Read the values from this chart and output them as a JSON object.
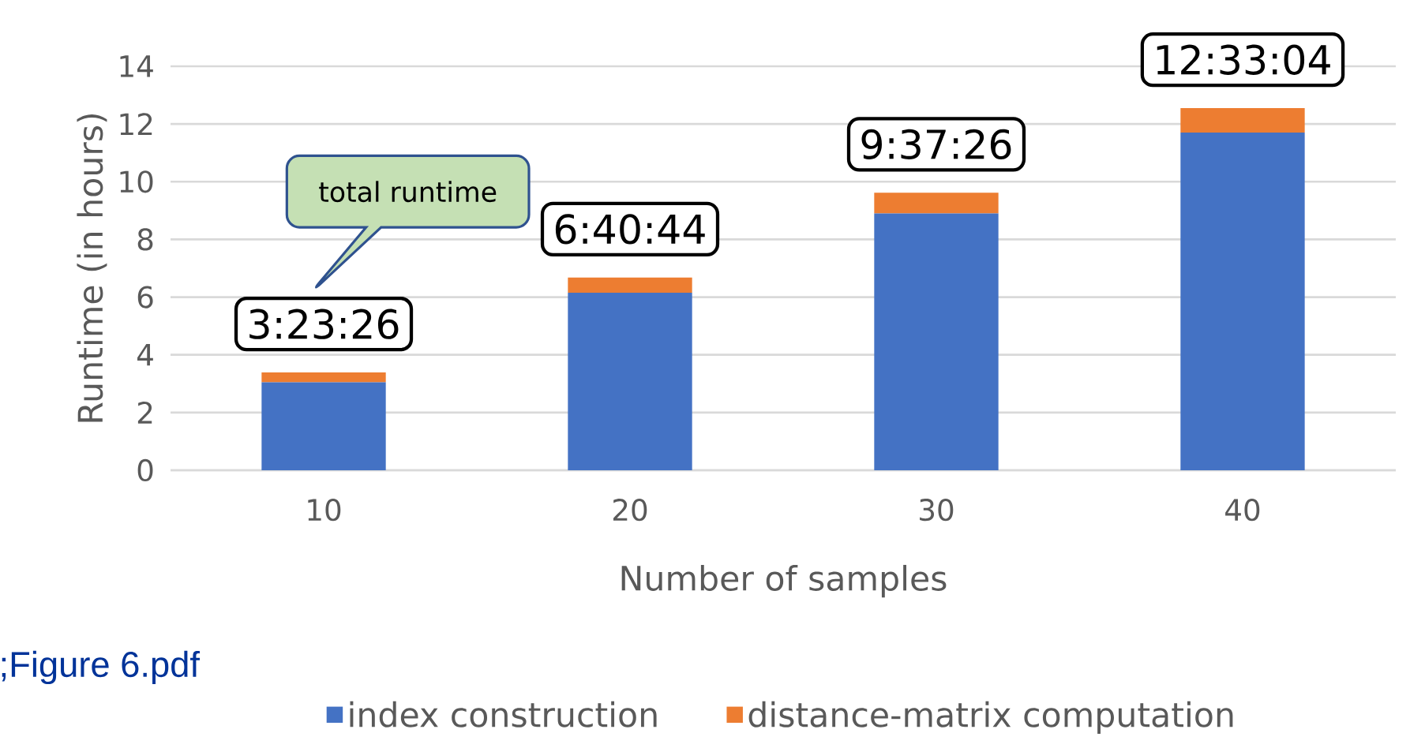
{
  "chart_data": {
    "type": "bar",
    "stacked": true,
    "xlabel": "Number of samples",
    "ylabel": "Runtime (in hours)",
    "categories": [
      "10",
      "20",
      "30",
      "40"
    ],
    "series": [
      {
        "name": "index construction",
        "color": "#4472c4",
        "values": [
          3.05,
          6.15,
          8.9,
          11.7
        ]
      },
      {
        "name": "distance-matrix computation",
        "color": "#ed7d31",
        "values": [
          0.34,
          0.53,
          0.72,
          0.85
        ]
      }
    ],
    "annotations": [
      {
        "text": "3:23:26",
        "x": "10",
        "y": 3.39
      },
      {
        "text": "6:40:44",
        "x": "20",
        "y": 6.68
      },
      {
        "text": "9:37:26",
        "x": "30",
        "y": 9.62
      },
      {
        "text": "12:33:04",
        "x": "40",
        "y": 12.55
      },
      "total runtime",
      ";Figure 6.pdf"
    ],
    "ylim": [
      0,
      14
    ],
    "yticks": [
      0,
      2,
      4,
      6,
      8,
      10,
      12,
      14
    ],
    "grid": "y",
    "legend": "bottom"
  }
}
